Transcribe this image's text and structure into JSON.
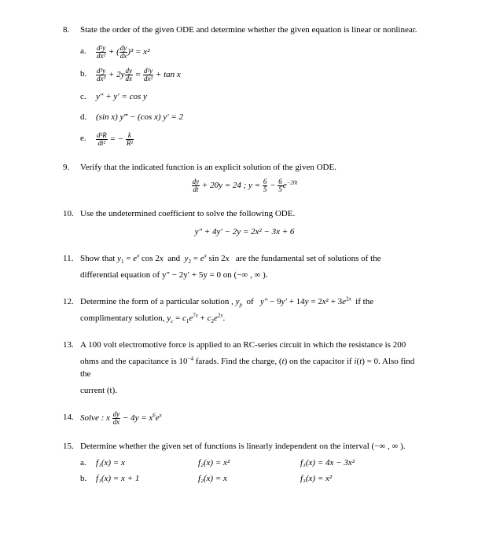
{
  "page": {
    "background_color": "#ffffff",
    "text_color": "#000000",
    "font_family": "Times New Roman",
    "base_fontsize": 11
  },
  "problems": {
    "p8": {
      "num": "8.",
      "text": "State the order of the given ODE and determine whether the given equation is linear or nonlinear.",
      "items": {
        "a": {
          "label": "a.",
          "eq": "d²y/dx² + (dy/dx)³ = x²"
        },
        "b": {
          "label": "b.",
          "eq": "d³y/dx³ + 2y dy/dx = d²y/dx² + tan x"
        },
        "c": {
          "label": "c.",
          "eq": "y″ + y′ = cos y"
        },
        "d": {
          "label": "d.",
          "eq": "(sin x) y‴ − (cos x) y′ = 2"
        },
        "e": {
          "label": "e.",
          "eq": "d²R/dt² = − k/R²"
        }
      }
    },
    "p9": {
      "num": "9.",
      "text": "Verify that the indicated function is an explicit solution of the given ODE.",
      "eq": "dy/dt + 20y = 24 ; y = 6/5 − 6/5 e⁻²⁰ᵗ"
    },
    "p10": {
      "num": "10.",
      "text": "Use the undetermined coefficient to solve the following ODE.",
      "eq": "y″ + 4y′ − 2y = 2x² − 3x + 6"
    },
    "p11": {
      "num": "11.",
      "text1": "Show that y₁ = eˣ cos 2x  and  y₂ = eˣ sin 2x   are the fundamental set of solutions of the",
      "text2": "differential equation of  y″ − 2y′ + 5y = 0  on (−∞ , ∞ )."
    },
    "p12": {
      "num": "12.",
      "text1": "Determine the form of a particular solution , yₚ  of   y″ − 9y′ + 14y = 2x² + 3e²ˣ  if the",
      "text2": "complimentary solution, y𝒸 = c₁e⁷ˣ + c₂e²ˣ."
    },
    "p13": {
      "num": "13.",
      "text1": "A 100 volt electromotive force is applied to an RC-series circuit in which the resistance is 200",
      "text2": "ohms and the capacitance is 10⁻⁴ farads. Find the charge, (t) on the capacitor if i(t) = 0. Also find the",
      "text3": "current (t)."
    },
    "p14": {
      "num": "14.",
      "text": "Solve : x dy/dx − 4y = x⁶eˣ"
    },
    "p15": {
      "num": "15.",
      "text": "Determine whether the given set of functions is linearly independent on the interval  (−∞ , ∞ ).",
      "items": {
        "a": {
          "label": "a.",
          "f1": "f₁(x) = x",
          "f2": "f₂(x) = x²",
          "f3": "f₃(x) = 4x − 3x²"
        },
        "b": {
          "label": "b.",
          "f1": "f₁(x) = x + 1",
          "f2": "f₂(x) = x",
          "f3": "f₃(x) = x²"
        }
      }
    }
  }
}
